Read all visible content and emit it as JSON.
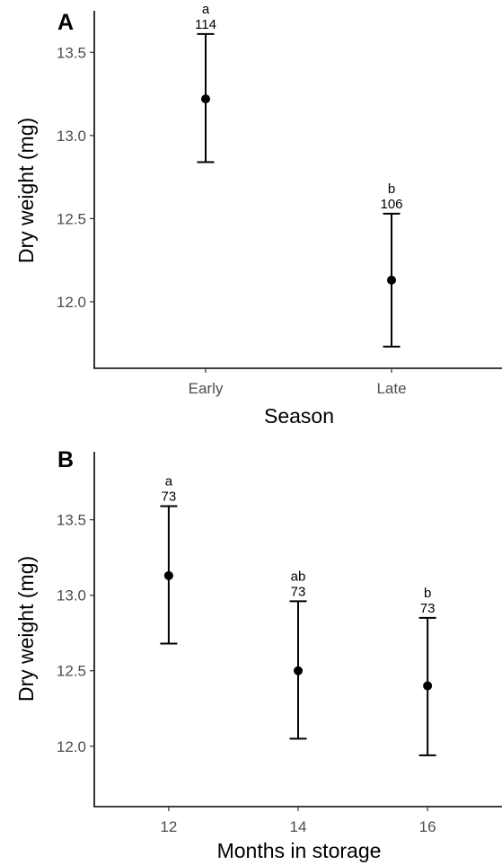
{
  "chart_data": [
    {
      "type": "scatter",
      "panel_label": "A",
      "xlabel": "Season",
      "ylabel": "Dry weight (mg)",
      "categories": [
        "Early",
        "Late"
      ],
      "series": [
        {
          "values": [
            13.22,
            12.13
          ],
          "error_low": [
            12.84,
            11.73
          ],
          "error_high": [
            13.61,
            12.53
          ],
          "group_letters": [
            "a",
            "b"
          ],
          "n": [
            "114",
            "106"
          ]
        }
      ],
      "yticks": [
        12.0,
        12.5,
        13.0,
        13.5
      ],
      "ytick_labels": [
        "12.0",
        "12.5",
        "13.0",
        "13.5"
      ],
      "ylim": [
        11.6,
        13.75
      ],
      "grid": false
    },
    {
      "type": "scatter",
      "panel_label": "B",
      "xlabel": "Months in storage",
      "ylabel": "Dry weight (mg)",
      "x": [
        12,
        14,
        16
      ],
      "xticks": [
        12,
        14,
        16
      ],
      "xtick_labels": [
        "12",
        "14",
        "16"
      ],
      "xlim": [
        10.85,
        17.15
      ],
      "series": [
        {
          "values": [
            13.13,
            12.5,
            12.4
          ],
          "error_low": [
            12.68,
            12.05,
            11.94
          ],
          "error_high": [
            13.59,
            12.96,
            12.85
          ],
          "group_letters": [
            "a",
            "ab",
            "b"
          ],
          "n": [
            "73",
            "73",
            "73"
          ]
        }
      ],
      "yticks": [
        12.0,
        12.5,
        13.0,
        13.5
      ],
      "ytick_labels": [
        "12.0",
        "12.5",
        "13.0",
        "13.5"
      ],
      "ylim": [
        11.6,
        13.95
      ],
      "grid": false
    }
  ]
}
